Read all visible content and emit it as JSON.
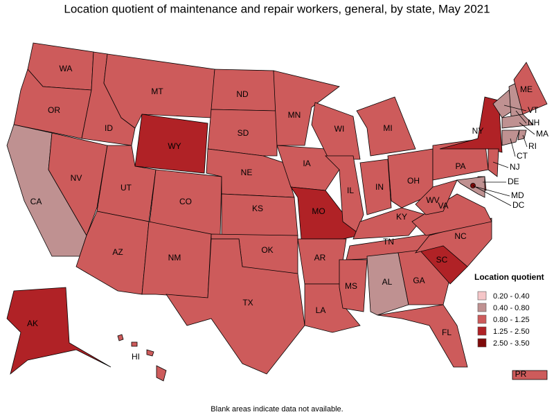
{
  "title": "Location quotient of maintenance and repair workers, general, by state, May 2021",
  "footnote": "Blank areas indicate data not available.",
  "legend": {
    "title": "Location quotient",
    "items": [
      {
        "label": "0.20 - 0.40",
        "color": "#f5c6c8"
      },
      {
        "label": "0.40 - 0.80",
        "color": "#bf9191"
      },
      {
        "label": "0.80 - 1.25",
        "color": "#cd5b5b"
      },
      {
        "label": "1.25 - 2.50",
        "color": "#b02226"
      },
      {
        "label": "2.50 - 3.50",
        "color": "#7e0a0a"
      }
    ]
  },
  "states": [
    {
      "name": "WA",
      "bin": 2
    },
    {
      "name": "OR",
      "bin": 2
    },
    {
      "name": "CA",
      "bin": 1
    },
    {
      "name": "NV",
      "bin": 2
    },
    {
      "name": "ID",
      "bin": 2
    },
    {
      "name": "MT",
      "bin": 2
    },
    {
      "name": "WY",
      "bin": 3
    },
    {
      "name": "UT",
      "bin": 2
    },
    {
      "name": "CO",
      "bin": 2
    },
    {
      "name": "AZ",
      "bin": 2
    },
    {
      "name": "NM",
      "bin": 2
    },
    {
      "name": "ND",
      "bin": 2
    },
    {
      "name": "SD",
      "bin": 2
    },
    {
      "name": "NE",
      "bin": 2
    },
    {
      "name": "KS",
      "bin": 2
    },
    {
      "name": "OK",
      "bin": 2
    },
    {
      "name": "TX",
      "bin": 2
    },
    {
      "name": "MN",
      "bin": 2
    },
    {
      "name": "IA",
      "bin": 2
    },
    {
      "name": "MO",
      "bin": 3
    },
    {
      "name": "AR",
      "bin": 2
    },
    {
      "name": "LA",
      "bin": 2
    },
    {
      "name": "WI",
      "bin": 2
    },
    {
      "name": "IL",
      "bin": 2
    },
    {
      "name": "MI",
      "bin": 2
    },
    {
      "name": "IN",
      "bin": 2
    },
    {
      "name": "OH",
      "bin": 2
    },
    {
      "name": "KY",
      "bin": 2
    },
    {
      "name": "TN",
      "bin": 2
    },
    {
      "name": "MS",
      "bin": 2
    },
    {
      "name": "AL",
      "bin": 1
    },
    {
      "name": "GA",
      "bin": 2
    },
    {
      "name": "FL",
      "bin": 2
    },
    {
      "name": "SC",
      "bin": 3
    },
    {
      "name": "NC",
      "bin": 2
    },
    {
      "name": "VA",
      "bin": 2
    },
    {
      "name": "WV",
      "bin": 2
    },
    {
      "name": "PA",
      "bin": 2
    },
    {
      "name": "NY",
      "bin": 3
    },
    {
      "name": "VT",
      "bin": 1
    },
    {
      "name": "NH",
      "bin": 1
    },
    {
      "name": "ME",
      "bin": 2
    },
    {
      "name": "MA",
      "bin": 1
    },
    {
      "name": "CT",
      "bin": 1
    },
    {
      "name": "RI",
      "bin": 1
    },
    {
      "name": "NJ",
      "bin": 2
    },
    {
      "name": "DE",
      "bin": 2
    },
    {
      "name": "MD",
      "bin": 1
    },
    {
      "name": "DC",
      "bin": 4
    },
    {
      "name": "AK",
      "bin": 3
    },
    {
      "name": "HI",
      "bin": 2
    },
    {
      "name": "PR",
      "bin": 2
    }
  ]
}
